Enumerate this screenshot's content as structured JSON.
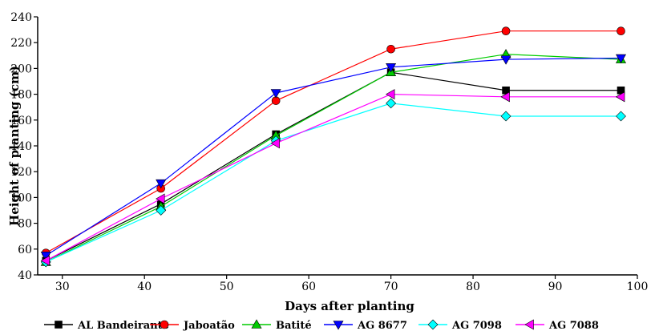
{
  "chart_data": {
    "type": "line",
    "title": "",
    "xlabel": "Days after planting",
    "ylabel": "Height of planting (cm)",
    "xlim": [
      27,
      100
    ],
    "ylim": [
      40,
      240
    ],
    "xticks": [
      30,
      40,
      50,
      60,
      70,
      80,
      90,
      100
    ],
    "yticks": [
      40,
      60,
      80,
      100,
      120,
      140,
      160,
      180,
      200,
      220,
      240
    ],
    "grid": false,
    "legend_position": "bottom",
    "x": [
      28,
      42,
      56,
      70,
      84,
      98
    ],
    "series": [
      {
        "name": "AL Bandeirante",
        "color": "#000000",
        "marker": "square",
        "values": [
          51,
          95,
          149,
          197,
          183,
          183
        ]
      },
      {
        "name": "Jaboatão",
        "color": "#ff0000",
        "marker": "circle",
        "values": [
          57,
          107,
          175,
          215,
          229,
          229
        ]
      },
      {
        "name": "Batité",
        "color": "#00cc00",
        "marker": "triangle-up",
        "values": [
          50,
          93,
          148,
          197,
          211,
          207
        ]
      },
      {
        "name": "AG 8677",
        "color": "#0000ff",
        "marker": "triangle-down",
        "values": [
          55,
          111,
          181,
          201,
          207,
          208
        ]
      },
      {
        "name": "AG 7098",
        "color": "#00ffff",
        "marker": "diamond",
        "values": [
          50,
          90,
          144,
          173,
          163,
          163
        ]
      },
      {
        "name": "AG 7088",
        "color": "#ff00ff",
        "marker": "triangle-left",
        "values": [
          51,
          99,
          142,
          180,
          178,
          178
        ]
      }
    ]
  }
}
